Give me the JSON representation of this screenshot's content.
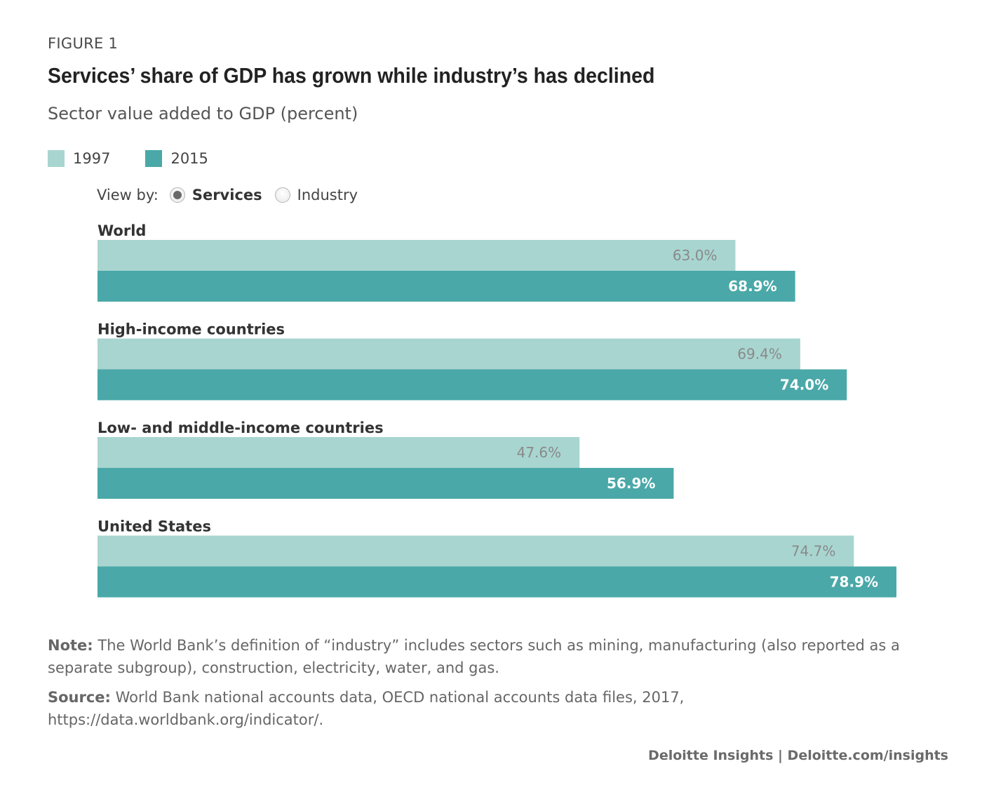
{
  "figure": {
    "eyebrow": "FIGURE 1",
    "title": "Services’ share of GDP has grown while industry’s has declined",
    "subtitle": "Sector value added to GDP (percent)"
  },
  "legend": [
    {
      "label": "1997",
      "color": "#a8d5d0"
    },
    {
      "label": "2015",
      "color": "#4aa8a8"
    }
  ],
  "view_by": {
    "label": "View by:",
    "options": [
      {
        "label": "Services",
        "selected": true
      },
      {
        "label": "Industry",
        "selected": false
      }
    ]
  },
  "chart_data": {
    "type": "bar",
    "orientation": "horizontal",
    "categories": [
      "World",
      "High-income countries",
      "Low- and middle-income countries",
      "United States"
    ],
    "series": [
      {
        "name": "1997",
        "values": [
          63.0,
          69.4,
          47.6,
          74.7
        ],
        "labels": [
          "63.0%",
          "69.4%",
          "47.6%",
          "74.7%"
        ],
        "color": "#a8d5d0",
        "label_color": "#8a8a8a"
      },
      {
        "name": "2015",
        "values": [
          68.9,
          74.0,
          56.9,
          78.9
        ],
        "labels": [
          "68.9%",
          "74.0%",
          "56.9%",
          "78.9%"
        ],
        "color": "#4aa8a8",
        "label_color": "#ffffff"
      }
    ],
    "xlim": [
      0,
      78.9
    ],
    "grid": false
  },
  "note": {
    "label": "Note:",
    "text": " The World Bank’s definition of “industry” includes sectors such as mining, manufacturing (also reported as a separate subgroup), construction, electricity, water, and gas."
  },
  "source": {
    "label": "Source:",
    "text": " World Bank national accounts data, OECD national accounts data files, 2017, https://data.worldbank.org/indicator/."
  },
  "footer": "Deloitte Insights | Deloitte.com/insights"
}
